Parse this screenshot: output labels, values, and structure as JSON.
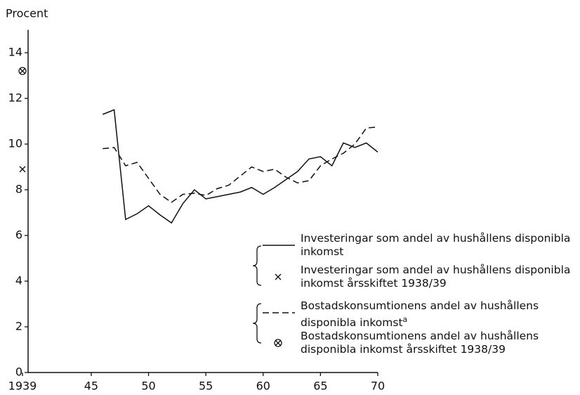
{
  "chart_data": {
    "type": "line",
    "y_label": "Procent",
    "xlim": [
      1939,
      1970
    ],
    "ylim": [
      0,
      15
    ],
    "xticks": [
      1939,
      {
        "value": 1945,
        "label": "45"
      },
      {
        "value": 1950,
        "label": "50"
      },
      {
        "value": 1955,
        "label": "55"
      },
      {
        "value": 1960,
        "label": "60"
      },
      {
        "value": 1965,
        "label": "65"
      },
      {
        "value": 1970,
        "label": "70"
      }
    ],
    "yticks": [
      0,
      2,
      4,
      6,
      8,
      10,
      12,
      14
    ],
    "series": [
      {
        "name": "Investeringar som andel av hushållens disponibla inkomst",
        "color": "#111111",
        "style": "solid",
        "x": [
          1946,
          1947,
          1948,
          1949,
          1950,
          1951,
          1952,
          1953,
          1954,
          1955,
          1956,
          1957,
          1958,
          1959,
          1960,
          1961,
          1962,
          1963,
          1964,
          1965,
          1966,
          1967,
          1968,
          1969,
          1970
        ],
        "values": [
          11.3,
          11.5,
          6.7,
          6.95,
          7.3,
          6.9,
          6.55,
          7.4,
          8.0,
          7.6,
          7.7,
          7.8,
          7.9,
          8.1,
          7.8,
          8.1,
          8.45,
          8.8,
          9.35,
          9.45,
          9.05,
          10.05,
          9.85,
          10.05,
          9.65
        ]
      },
      {
        "name": "Investeringar som andel av hushållens disponibla inkomst årsskiftet 1938/39",
        "color": "#111111",
        "marker": "x",
        "x": [
          1939
        ],
        "values": [
          8.9
        ]
      },
      {
        "name": "Bostadskonsumtionens andel av hushållens disponibla inkomst",
        "footnote": "a",
        "color": "#111111",
        "style": "dashed",
        "x": [
          1946,
          1947,
          1948,
          1949,
          1950,
          1951,
          1952,
          1953,
          1954,
          1955,
          1956,
          1957,
          1958,
          1959,
          1960,
          1961,
          1962,
          1963,
          1964,
          1965,
          1966,
          1967,
          1968,
          1969,
          1970
        ],
        "values": [
          9.8,
          9.85,
          9.05,
          9.2,
          8.5,
          7.8,
          7.45,
          7.8,
          7.85,
          7.75,
          8.05,
          8.2,
          8.6,
          9.0,
          8.8,
          8.9,
          8.55,
          8.3,
          8.4,
          9.05,
          9.35,
          9.6,
          10.0,
          10.7,
          10.75
        ]
      },
      {
        "name": "Bostadskonsumtionens andel av hushållens disponibla inkomst årsskiftet 1938/39",
        "color": "#111111",
        "marker": "circle-cross",
        "x": [
          1939
        ],
        "values": [
          13.2
        ]
      }
    ]
  }
}
